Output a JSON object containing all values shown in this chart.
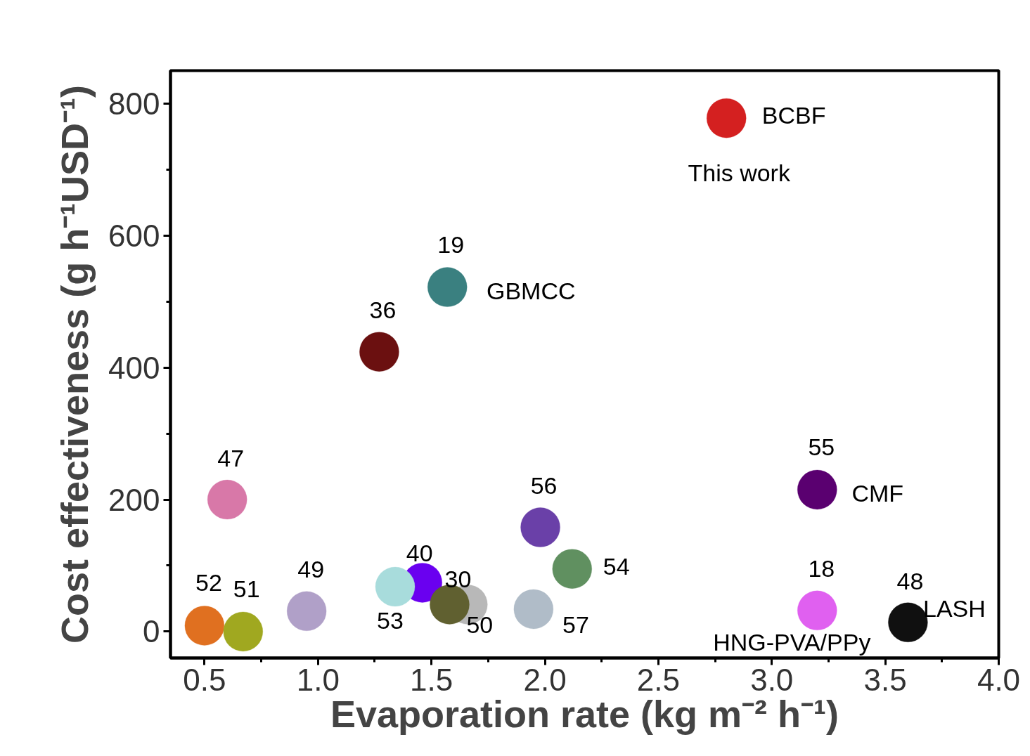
{
  "chart_data": {
    "type": "scatter",
    "xlabel": "Evaporation rate (kg m⁻² h⁻¹)",
    "ylabel": "Cost effectiveness (g h⁻¹USD⁻¹)",
    "x": [
      2.8,
      1.57,
      1.27,
      0.6,
      0.5,
      0.67,
      0.95,
      1.46,
      1.34,
      1.66,
      1.58,
      1.98,
      2.12,
      1.95,
      3.2,
      3.2,
      3.6
    ],
    "values": [
      778,
      522,
      424,
      200,
      9,
      0,
      31,
      74,
      68,
      41,
      41,
      158,
      95,
      34,
      215,
      32,
      14
    ],
    "colors": [
      "#d42020",
      "#3a8080",
      "#6b1010",
      "#d878a8",
      "#e07020",
      "#a0a820",
      "#b0a0c8",
      "#6a00f0",
      "#a8dcdc",
      "#b8b8b8",
      "#606030",
      "#6a40a8",
      "#609060",
      "#b0bcc8",
      "#5a0070",
      "#e060f0",
      "#101010"
    ],
    "xlim": [
      0.35,
      4.0
    ],
    "xticks": [
      0.5,
      {
        "value": 1,
        "label": "1.0"
      },
      1.5,
      {
        "value": 2,
        "label": "2.0"
      },
      2.5,
      {
        "value": 3,
        "label": "3.0"
      },
      3.5,
      {
        "value": 4,
        "label": "4.0"
      }
    ],
    "ylim": [
      -40,
      850
    ],
    "yticks": [
      0,
      200,
      400,
      600,
      800
    ],
    "marker": "circle",
    "grid": false,
    "annotations": [
      {
        "text": "BCBF",
        "x": 2.8,
        "y": 778
      },
      {
        "text": "This work",
        "x": 2.8,
        "y": 778
      },
      {
        "text": "19",
        "x": 1.57,
        "y": 522
      },
      {
        "text": "GBMCC",
        "x": 1.57,
        "y": 522
      },
      {
        "text": "36",
        "x": 1.27,
        "y": 424
      },
      {
        "text": "47",
        "x": 0.6,
        "y": 200
      },
      {
        "text": "56",
        "x": 1.98,
        "y": 158
      },
      {
        "text": "55",
        "x": 3.2,
        "y": 215
      },
      {
        "text": "CMF",
        "x": 3.2,
        "y": 215
      },
      {
        "text": "54",
        "x": 2.12,
        "y": 95
      },
      {
        "text": "40",
        "x": 1.46,
        "y": 74
      },
      {
        "text": "49",
        "x": 0.95,
        "y": 31
      },
      {
        "text": "52",
        "x": 0.5,
        "y": 9
      },
      {
        "text": "51",
        "x": 0.67,
        "y": 0
      },
      {
        "text": "30",
        "x": 1.58,
        "y": 41
      },
      {
        "text": "53",
        "x": 1.34,
        "y": 68
      },
      {
        "text": "50",
        "x": 1.66,
        "y": 41
      },
      {
        "text": "57",
        "x": 1.95,
        "y": 34
      },
      {
        "text": "18",
        "x": 3.2,
        "y": 32
      },
      {
        "text": "48",
        "x": 3.6,
        "y": 14
      },
      {
        "text": "LASH",
        "x": 3.6,
        "y": 14
      },
      {
        "text": "HNG-PVA/PPy",
        "x": 3.2,
        "y": 32
      }
    ]
  }
}
